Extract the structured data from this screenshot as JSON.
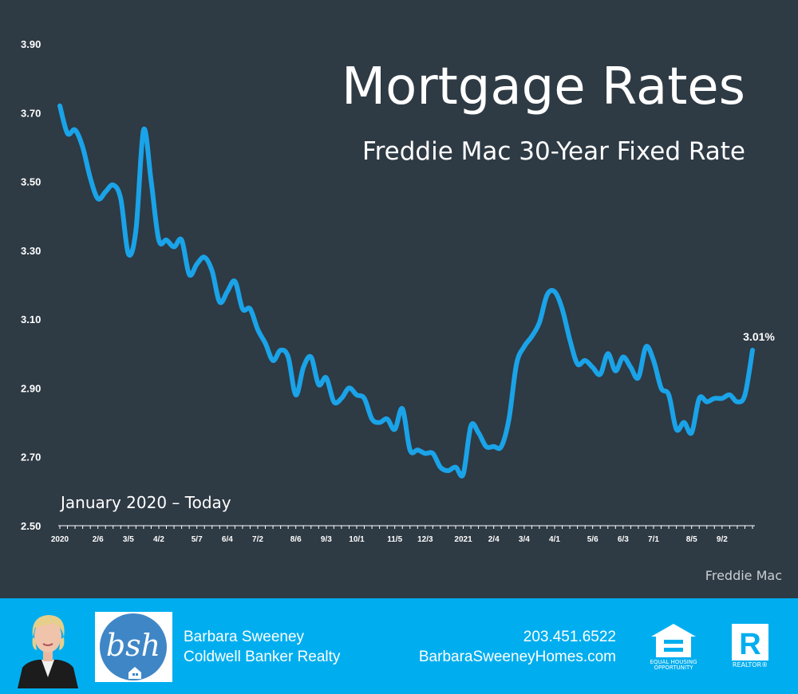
{
  "chart_data": {
    "type": "line",
    "title": "Mortgage Rates",
    "subtitle": "Freddie Mac 30-Year Fixed Rate",
    "range_label": "January 2020 – Today",
    "source": "Freddie Mac",
    "end_label": "3.01%",
    "ylim": [
      2.5,
      3.9
    ],
    "y_ticks": [
      "2.50",
      "2.70",
      "2.90",
      "3.10",
      "3.30",
      "3.50",
      "3.70",
      "3.90"
    ],
    "x_tick_labels": [
      "2020",
      "2/6",
      "3/5",
      "4/2",
      "5/7",
      "6/4",
      "7/2",
      "8/6",
      "9/3",
      "10/1",
      "11/5",
      "12/3",
      "2021",
      "2/4",
      "3/4",
      "4/1",
      "5/6",
      "6/3",
      "7/1",
      "8/5",
      "9/2"
    ],
    "x_tick_weeks": [
      0,
      5,
      9,
      13,
      18,
      22,
      26,
      31,
      35,
      39,
      44,
      48,
      53,
      57,
      61,
      65,
      70,
      74,
      78,
      83,
      87
    ],
    "series": [
      {
        "values": [
          3.72,
          3.64,
          3.65,
          3.6,
          3.51,
          3.45,
          3.47,
          3.49,
          3.45,
          3.29,
          3.36,
          3.65,
          3.5,
          3.33,
          3.33,
          3.31,
          3.33,
          3.23,
          3.26,
          3.28,
          3.24,
          3.15,
          3.18,
          3.21,
          3.13,
          3.13,
          3.07,
          3.03,
          2.98,
          3.01,
          2.99,
          2.88,
          2.96,
          2.99,
          2.91,
          2.93,
          2.86,
          2.87,
          2.9,
          2.88,
          2.87,
          2.81,
          2.8,
          2.81,
          2.78,
          2.84,
          2.72,
          2.72,
          2.71,
          2.71,
          2.67,
          2.66,
          2.67,
          2.65,
          2.79,
          2.77,
          2.73,
          2.73,
          2.73,
          2.81,
          2.97,
          3.02,
          3.05,
          3.09,
          3.17,
          3.18,
          3.13,
          3.04,
          2.97,
          2.98,
          2.96,
          2.94,
          3.0,
          2.95,
          2.99,
          2.96,
          2.93,
          3.02,
          2.98,
          2.9,
          2.88,
          2.78,
          2.8,
          2.77,
          2.87,
          2.86,
          2.87,
          2.87,
          2.88,
          2.86,
          2.88,
          3.01
        ]
      }
    ],
    "colors": {
      "line": "#1aa3e8",
      "background": "#2e3a44",
      "axis": "#ffffff"
    },
    "grid": false,
    "legend": "none"
  },
  "footer": {
    "agent_name": "Barbara Sweeney",
    "company": "Coldwell Banker Realty",
    "phone": "203.451.6522",
    "website": "BarbaraSweeneyHomes.com",
    "logo_text": "bsh",
    "eho_caption_1": "EQUAL HOUSING",
    "eho_caption_2": "OPPORTUNITY",
    "realtor_caption": "REALTOR®",
    "accent": "#00aeef"
  }
}
